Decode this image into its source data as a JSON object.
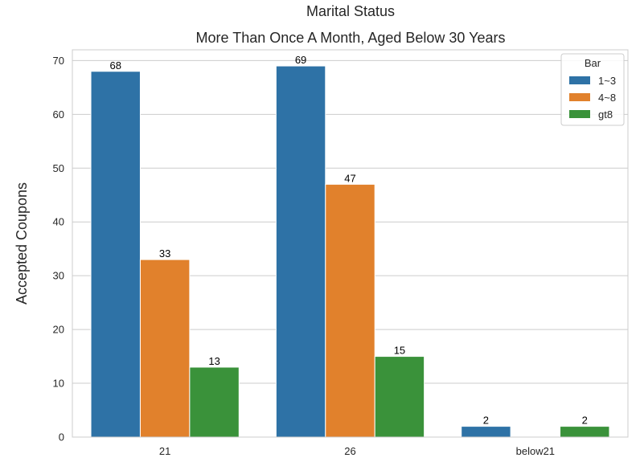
{
  "chart_data": {
    "type": "bar",
    "title": "Marital Status",
    "subtitle": "More Than Once A Month, Aged Below 30 Years",
    "xlabel": "",
    "ylabel": "Accepted Coupons",
    "categories": [
      "21",
      "26",
      "below21"
    ],
    "series": [
      {
        "name": "1~3",
        "color": "#2e72a6",
        "values": [
          68,
          69,
          2
        ]
      },
      {
        "name": "4~8",
        "color": "#e1812c",
        "values": [
          33,
          47,
          null
        ]
      },
      {
        "name": "gt8",
        "color": "#3a923a",
        "values": [
          13,
          15,
          2
        ]
      }
    ],
    "ylim": [
      0,
      72
    ],
    "yticks": [
      0,
      10,
      20,
      30,
      40,
      50,
      60,
      70
    ],
    "grid": true,
    "legend": {
      "title": "Bar",
      "placement": "top-right"
    }
  }
}
